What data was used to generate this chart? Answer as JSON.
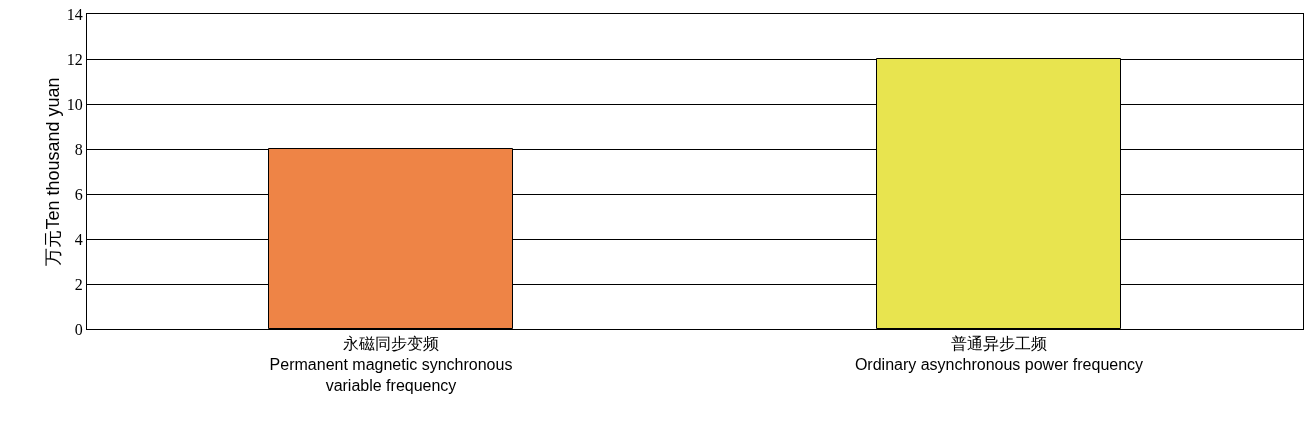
{
  "chart_data": {
    "type": "bar",
    "ylabel": "万元Ten thousand yuan",
    "categories": [
      "永磁同步变频\nPermanent magnetic synchronous\nvariable frequency",
      "普通异步工频\nOrdinary asynchronous power frequency"
    ],
    "values": [
      8,
      12
    ],
    "colors": [
      "#ee8446",
      "#e8e44f"
    ],
    "ylim": [
      0,
      14
    ],
    "yticks": [
      0,
      2,
      4,
      6,
      8,
      10,
      12,
      14
    ],
    "grid": "y",
    "legend": false
  }
}
